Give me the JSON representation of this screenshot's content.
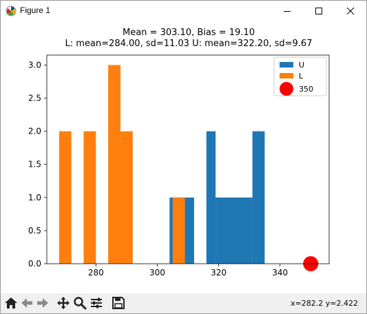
{
  "window": {
    "title": "Figure 1"
  },
  "toolbar": {
    "coords": "x=282.2 y=2.422"
  },
  "chart_data": {
    "type": "bar",
    "title_line1": "Mean = 303.10,  Bias = 19.10",
    "title_line2": "L: mean=284.00, sd=11.03  U: mean=322.20, sd=9.67",
    "xlim": [
      264,
      356
    ],
    "ylim": [
      0,
      3.15
    ],
    "xticks": [
      280,
      300,
      320,
      340
    ],
    "yticks": [
      0.0,
      0.5,
      1.0,
      1.5,
      2.0,
      2.5,
      3.0
    ],
    "ytick_labels": [
      "0.0",
      "0.5",
      "1.0",
      "1.5",
      "2.0",
      "2.5",
      "3.0"
    ],
    "legend_position": "upper right",
    "series": [
      {
        "name": "U",
        "color": "#1f77b4",
        "bins": [
          {
            "x0": 304,
            "x1": 308,
            "count": 1
          },
          {
            "x0": 308,
            "x1": 312,
            "count": 1
          },
          {
            "x0": 316,
            "x1": 319,
            "count": 2
          },
          {
            "x0": 319,
            "x1": 331,
            "count": 1
          },
          {
            "x0": 331,
            "x1": 335,
            "count": 2
          }
        ]
      },
      {
        "name": "L",
        "color": "#ff7f0e",
        "bins": [
          {
            "x0": 268,
            "x1": 272,
            "count": 2
          },
          {
            "x0": 276,
            "x1": 280,
            "count": 2
          },
          {
            "x0": 284,
            "x1": 288,
            "count": 3
          },
          {
            "x0": 288,
            "x1": 292,
            "count": 2
          },
          {
            "x0": 305,
            "x1": 309,
            "count": 1
          }
        ]
      }
    ],
    "marker": {
      "name": "350",
      "x": 350,
      "y": 0,
      "color": "#ff0000"
    }
  }
}
